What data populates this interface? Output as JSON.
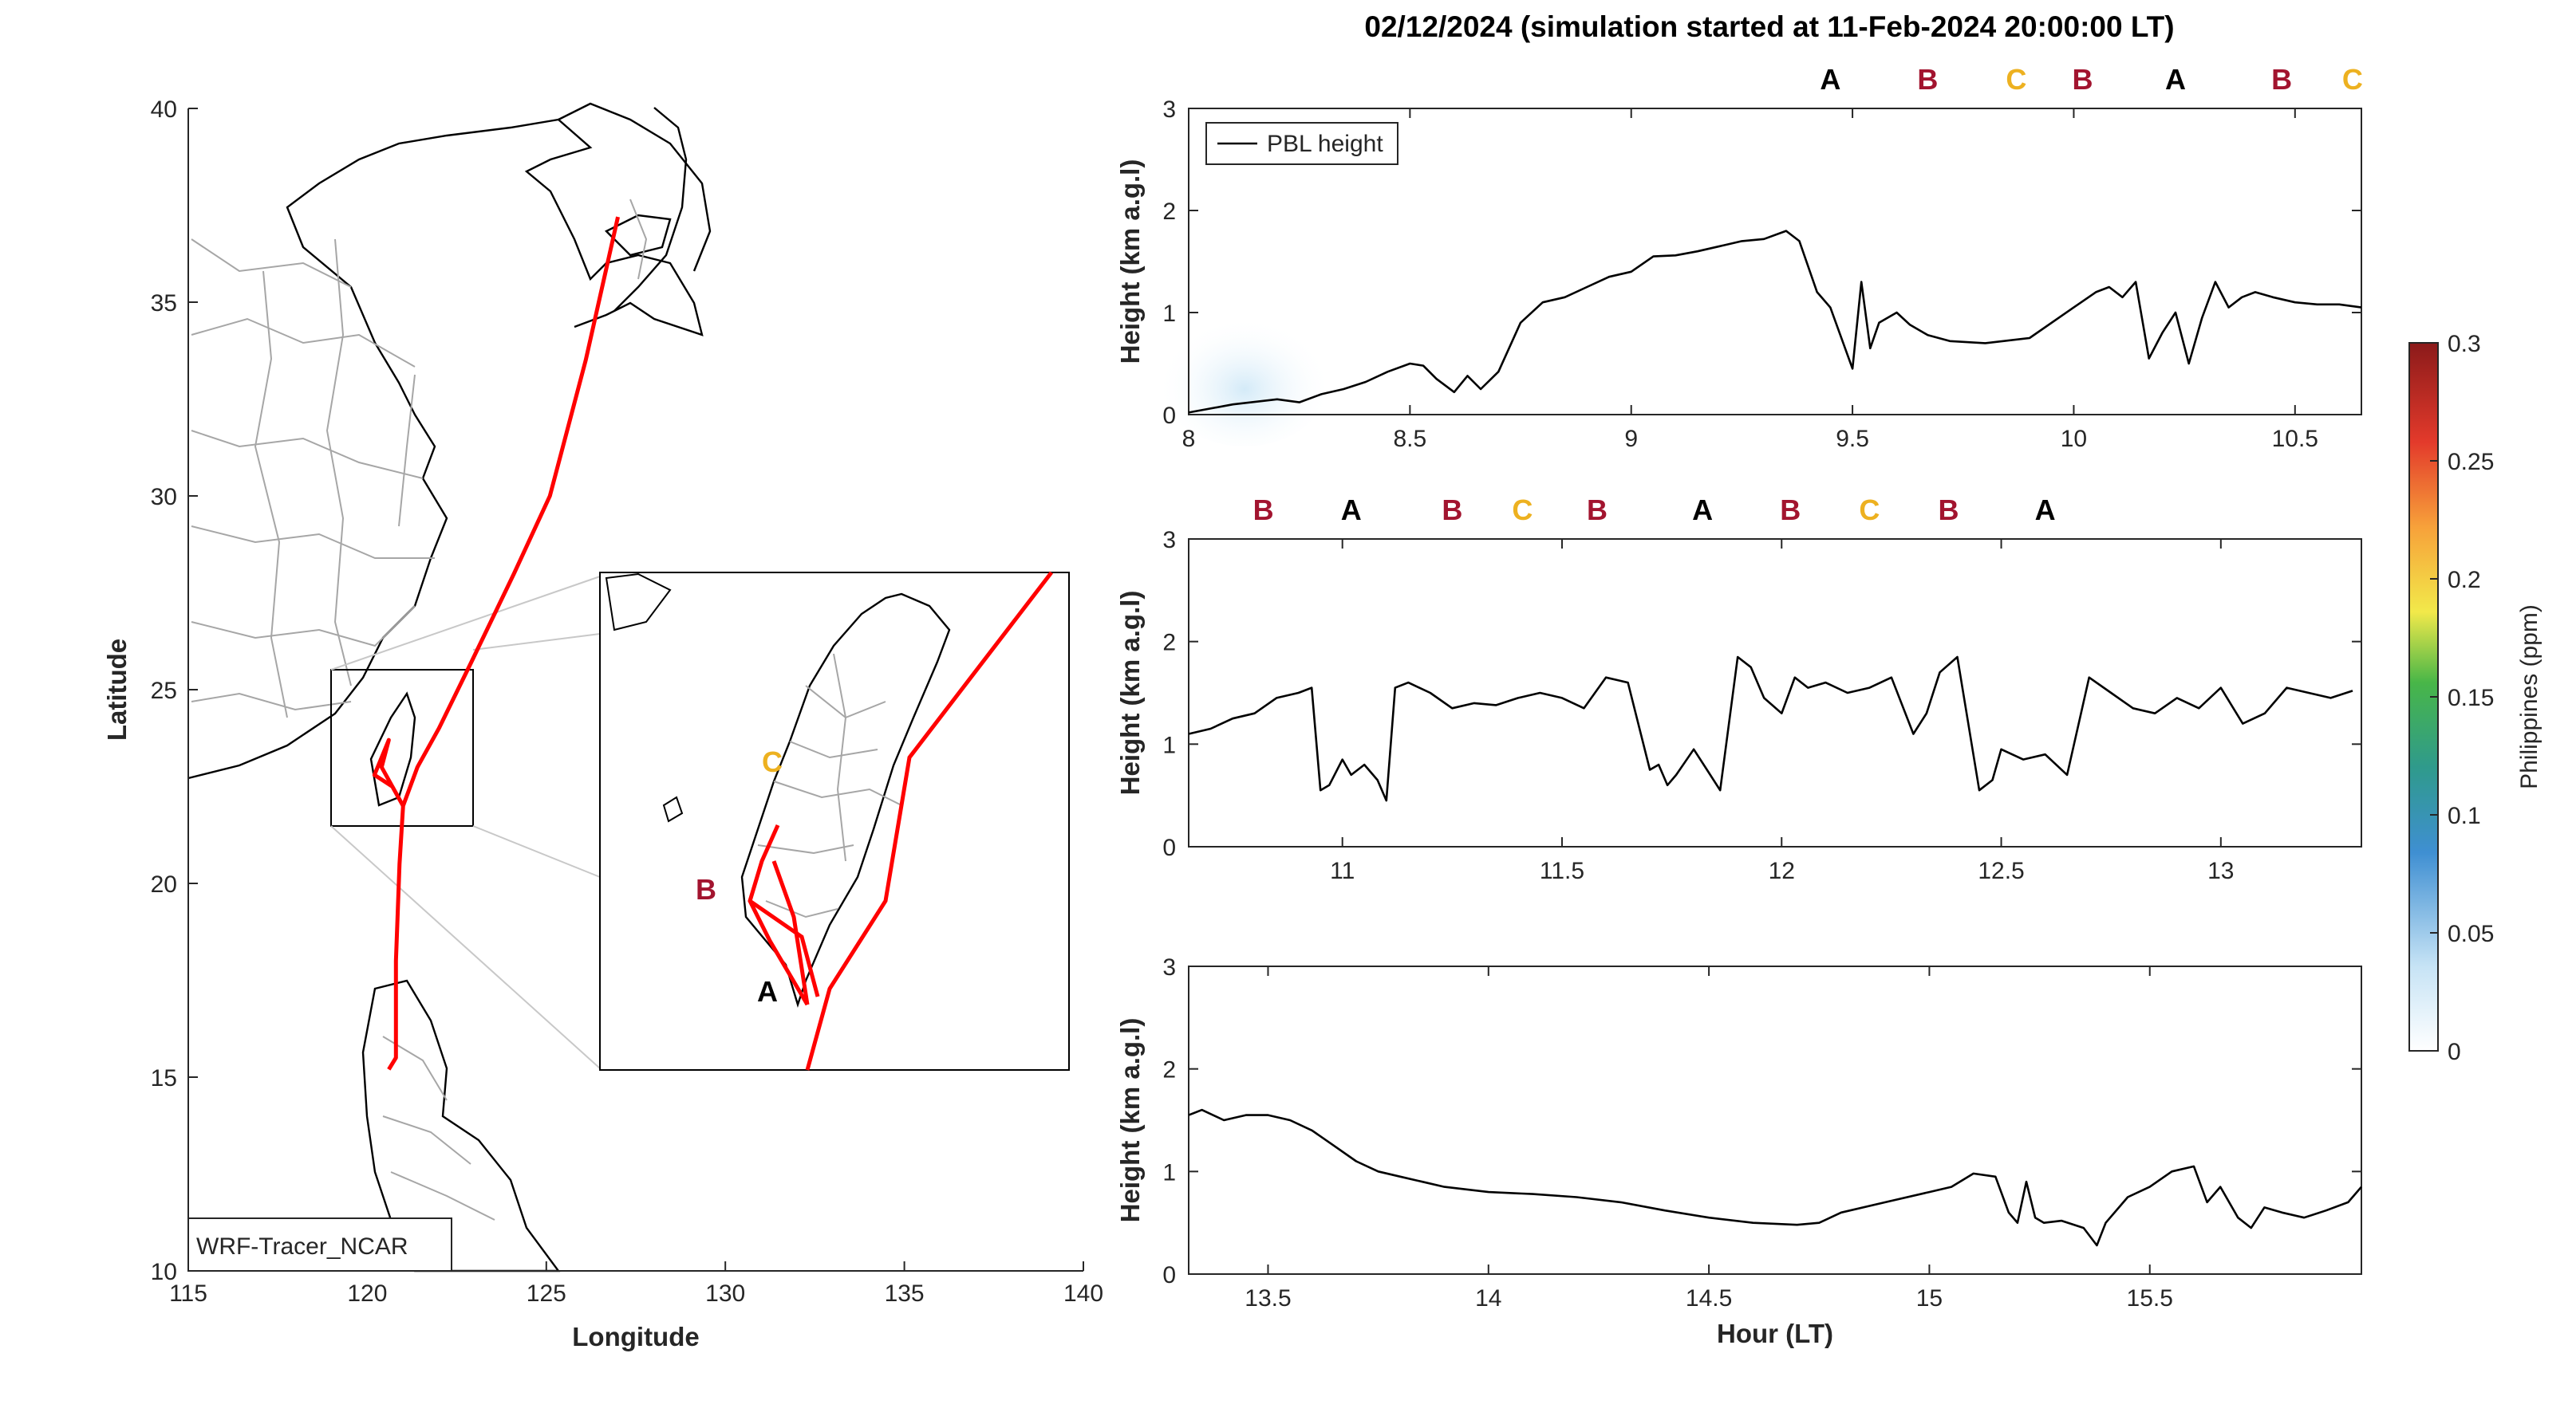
{
  "title": "02/12/2024 (simulation started at 11-Feb-2024 20:00:00 LT)",
  "colors": {
    "A": "#000000",
    "B": "#a2142f",
    "C": "#edb120",
    "track": "#ff0000"
  },
  "chart_data": [
    {
      "type": "line",
      "panel": "map",
      "xlabel": "Longitude",
      "ylabel": "Latitude",
      "xlim": [
        115,
        140
      ],
      "ylim": [
        10,
        40
      ],
      "xticks": [
        "115",
        "120",
        "125",
        "130",
        "135",
        "140"
      ],
      "yticks": [
        "10",
        "15",
        "20",
        "25",
        "30",
        "35",
        "40"
      ],
      "annotation": "WRF-Tracer_NCAR",
      "track": {
        "lon": [
          127.0,
          126.1,
          125.1,
          124.1,
          122.9,
          122.0,
          121.4,
          121.0,
          120.9,
          120.8,
          120.8,
          120.8,
          120.6
        ],
        "lat": [
          37.2,
          33.5,
          30.0,
          28.0,
          25.7,
          24.0,
          23.0,
          22.0,
          20.5,
          18.0,
          16.5,
          15.5,
          15.2
        ]
      },
      "track_b": {
        "lon": [
          121.0,
          120.4,
          120.6,
          120.2,
          120.7,
          121.0
        ],
        "lat": [
          22.0,
          23.0,
          23.7,
          22.8,
          22.5,
          22.0
        ]
      },
      "inset": {
        "xticks_visible": false,
        "points": [
          {
            "label": "A",
            "lon": 120.6,
            "lat": 22.1
          },
          {
            "label": "B",
            "lon": 120.05,
            "lat": 23.05
          },
          {
            "label": "C",
            "lon": 120.4,
            "lat": 23.85
          }
        ]
      }
    },
    {
      "type": "line",
      "panel": "pbl-1",
      "ylabel": "Height (km a.g.l)",
      "xlim": [
        8,
        10.65
      ],
      "ylim": [
        0,
        3
      ],
      "xticks": [
        "8",
        "8.5",
        "9",
        "9.5",
        "10",
        "10.5"
      ],
      "yticks": [
        "0",
        "1",
        "2",
        "3"
      ],
      "legend": "PBL height",
      "markers": [
        {
          "label": "A",
          "x": 9.45
        },
        {
          "label": "B",
          "x": 9.67
        },
        {
          "label": "C",
          "x": 9.87
        },
        {
          "label": "B",
          "x": 10.02
        },
        {
          "label": "A",
          "x": 10.23
        },
        {
          "label": "B",
          "x": 10.47
        },
        {
          "label": "C",
          "x": 10.63
        }
      ],
      "x": [
        8.0,
        8.1,
        8.2,
        8.25,
        8.3,
        8.35,
        8.4,
        8.45,
        8.5,
        8.53,
        8.56,
        8.6,
        8.63,
        8.66,
        8.7,
        8.75,
        8.8,
        8.85,
        8.9,
        8.95,
        9.0,
        9.05,
        9.1,
        9.15,
        9.2,
        9.25,
        9.3,
        9.35,
        9.38,
        9.42,
        9.45,
        9.5,
        9.52,
        9.54,
        9.56,
        9.6,
        9.63,
        9.67,
        9.72,
        9.8,
        9.9,
        10.0,
        10.05,
        10.08,
        10.11,
        10.14,
        10.17,
        10.2,
        10.23,
        10.26,
        10.29,
        10.32,
        10.35,
        10.38,
        10.41,
        10.45,
        10.5,
        10.55,
        10.6,
        10.65
      ],
      "y": [
        0.02,
        0.1,
        0.15,
        0.12,
        0.2,
        0.25,
        0.32,
        0.42,
        0.5,
        0.48,
        0.35,
        0.22,
        0.38,
        0.25,
        0.42,
        0.9,
        1.1,
        1.15,
        1.25,
        1.35,
        1.4,
        1.55,
        1.56,
        1.6,
        1.65,
        1.7,
        1.72,
        1.8,
        1.7,
        1.2,
        1.05,
        0.45,
        1.3,
        0.65,
        0.9,
        1.0,
        0.88,
        0.78,
        0.72,
        0.7,
        0.75,
        1.05,
        1.2,
        1.25,
        1.15,
        1.3,
        0.55,
        0.8,
        1.0,
        0.5,
        0.95,
        1.3,
        1.05,
        1.15,
        1.2,
        1.15,
        1.1,
        1.08,
        1.08,
        1.05
      ]
    },
    {
      "type": "line",
      "panel": "pbl-2",
      "ylabel": "Height (km a.g.l)",
      "xlim": [
        10.65,
        13.32
      ],
      "ylim": [
        0,
        3
      ],
      "xticks": [
        "11",
        "11.5",
        "12",
        "12.5",
        "13"
      ],
      "yticks": [
        "0",
        "1",
        "2",
        "3"
      ],
      "markers": [
        {
          "label": "B",
          "x": 10.82
        },
        {
          "label": "A",
          "x": 11.02
        },
        {
          "label": "B",
          "x": 11.25
        },
        {
          "label": "C",
          "x": 11.41
        },
        {
          "label": "B",
          "x": 11.58
        },
        {
          "label": "A",
          "x": 11.82
        },
        {
          "label": "B",
          "x": 12.02
        },
        {
          "label": "C",
          "x": 12.2
        },
        {
          "label": "B",
          "x": 12.38
        },
        {
          "label": "A",
          "x": 12.6
        }
      ],
      "x": [
        10.65,
        10.7,
        10.75,
        10.8,
        10.85,
        10.9,
        10.93,
        10.95,
        10.97,
        11.0,
        11.02,
        11.05,
        11.08,
        11.1,
        11.12,
        11.15,
        11.2,
        11.25,
        11.3,
        11.35,
        11.4,
        11.45,
        11.5,
        11.55,
        11.6,
        11.65,
        11.7,
        11.72,
        11.74,
        11.76,
        11.8,
        11.83,
        11.86,
        11.9,
        11.93,
        11.96,
        12.0,
        12.03,
        12.06,
        12.1,
        12.15,
        12.2,
        12.25,
        12.3,
        12.33,
        12.36,
        12.4,
        12.45,
        12.48,
        12.5,
        12.55,
        12.6,
        12.65,
        12.7,
        12.75,
        12.8,
        12.85,
        12.9,
        12.95,
        13.0,
        13.05,
        13.1,
        13.15,
        13.2,
        13.25,
        13.3
      ],
      "y": [
        1.1,
        1.15,
        1.25,
        1.3,
        1.45,
        1.5,
        1.55,
        0.55,
        0.6,
        0.85,
        0.7,
        0.8,
        0.65,
        0.45,
        1.55,
        1.6,
        1.5,
        1.35,
        1.4,
        1.38,
        1.45,
        1.5,
        1.45,
        1.35,
        1.65,
        1.6,
        0.75,
        0.8,
        0.6,
        0.7,
        0.95,
        0.75,
        0.55,
        1.85,
        1.75,
        1.45,
        1.3,
        1.65,
        1.55,
        1.6,
        1.5,
        1.55,
        1.65,
        1.1,
        1.3,
        1.7,
        1.85,
        0.55,
        0.65,
        0.95,
        0.85,
        0.9,
        0.7,
        1.65,
        1.5,
        1.35,
        1.3,
        1.45,
        1.35,
        1.55,
        1.2,
        1.3,
        1.55,
        1.5,
        1.45,
        1.52
      ]
    },
    {
      "type": "line",
      "panel": "pbl-3",
      "ylabel": "Height (km a.g.l)",
      "xlabel": "Hour (LT)",
      "xlim": [
        13.32,
        15.98
      ],
      "ylim": [
        0,
        3
      ],
      "xticks": [
        "13.5",
        "14",
        "14.5",
        "15",
        "15.5"
      ],
      "yticks": [
        "0",
        "1",
        "2",
        "3"
      ],
      "x": [
        13.32,
        13.35,
        13.4,
        13.45,
        13.5,
        13.55,
        13.6,
        13.65,
        13.7,
        13.75,
        13.8,
        13.85,
        13.9,
        14.0,
        14.1,
        14.2,
        14.3,
        14.4,
        14.5,
        14.6,
        14.7,
        14.75,
        14.8,
        14.9,
        15.0,
        15.05,
        15.1,
        15.15,
        15.18,
        15.2,
        15.22,
        15.24,
        15.26,
        15.3,
        15.35,
        15.38,
        15.4,
        15.45,
        15.5,
        15.55,
        15.6,
        15.63,
        15.66,
        15.7,
        15.73,
        15.76,
        15.8,
        15.85,
        15.9,
        15.95,
        15.98
      ],
      "y": [
        1.55,
        1.6,
        1.5,
        1.55,
        1.55,
        1.5,
        1.4,
        1.25,
        1.1,
        1.0,
        0.95,
        0.9,
        0.85,
        0.8,
        0.78,
        0.75,
        0.7,
        0.62,
        0.55,
        0.5,
        0.48,
        0.5,
        0.6,
        0.7,
        0.8,
        0.85,
        0.98,
        0.95,
        0.6,
        0.5,
        0.9,
        0.55,
        0.5,
        0.52,
        0.45,
        0.28,
        0.5,
        0.75,
        0.85,
        1.0,
        1.05,
        0.7,
        0.85,
        0.55,
        0.45,
        0.65,
        0.6,
        0.55,
        0.62,
        0.7,
        0.85
      ]
    },
    {
      "type": "heatmap",
      "panel": "colorbar",
      "label": "Philippines (ppm)",
      "range": [
        0,
        0.3
      ],
      "ticks": [
        "0",
        "0.05",
        "0.1",
        "0.15",
        "0.2",
        "0.25",
        "0.3"
      ]
    }
  ]
}
